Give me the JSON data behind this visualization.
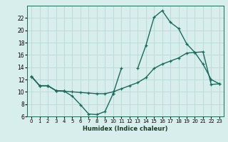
{
  "xlabel": "Humidex (Indice chaleur)",
  "background_color": "#d8eeec",
  "grid_color": "#b8d8d5",
  "line_color": "#1a6b5a",
  "x_values": [
    0,
    1,
    2,
    3,
    4,
    5,
    6,
    7,
    8,
    9,
    10,
    11,
    12,
    13,
    14,
    15,
    16,
    17,
    18,
    19,
    20,
    21,
    22,
    23
  ],
  "line1": [
    12.5,
    11.0,
    11.0,
    10.2,
    10.1,
    9.3,
    7.9,
    6.4,
    6.3,
    6.8,
    9.7,
    13.8,
    null,
    null,
    null,
    null,
    null,
    null,
    null,
    null,
    null,
    null,
    null,
    null
  ],
  "line2": [
    12.5,
    11.0,
    11.0,
    10.2,
    10.1,
    null,
    null,
    null,
    null,
    null,
    9.7,
    null,
    null,
    13.8,
    17.5,
    22.1,
    23.2,
    21.3,
    20.3,
    17.8,
    16.4,
    14.5,
    12.0,
    11.3
  ],
  "line3": [
    12.5,
    11.0,
    11.0,
    10.2,
    10.1,
    10.0,
    9.9,
    9.8,
    9.7,
    9.7,
    10.0,
    10.5,
    11.0,
    11.5,
    12.3,
    13.8,
    14.5,
    15.0,
    15.5,
    16.3,
    16.4,
    16.5,
    11.2,
    11.3
  ],
  "ylim": [
    6,
    24
  ],
  "xlim": [
    -0.5,
    23.5
  ],
  "yticks": [
    6,
    8,
    10,
    12,
    14,
    16,
    18,
    20,
    22
  ],
  "xtick_labels": [
    "0",
    "1",
    "2",
    "3",
    "4",
    "5",
    "6",
    "7",
    "8",
    "9",
    "10",
    "11",
    "12",
    "13",
    "14",
    "15",
    "16",
    "17",
    "18",
    "19",
    "20",
    "21",
    "22",
    "23"
  ]
}
